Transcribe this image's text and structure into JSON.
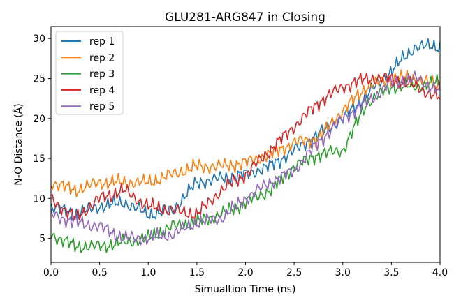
{
  "chart_data": {
    "type": "line",
    "title": "GLU281-ARG847 in Closing",
    "xlabel": "Simualtion Time (ns)",
    "ylabel": "N-O Distance (Å)",
    "xlim": [
      0.0,
      4.0
    ],
    "ylim": [
      2.0,
      31.5
    ],
    "xticks": [
      "0.0",
      "0.5",
      "1.0",
      "1.5",
      "2.0",
      "2.5",
      "3.0",
      "3.5",
      "4.0"
    ],
    "yticks": [
      "5",
      "10",
      "15",
      "20",
      "25",
      "30"
    ],
    "grid": false,
    "legend_position": "top-left",
    "x": [
      0.0,
      0.25,
      0.5,
      0.75,
      1.0,
      1.25,
      1.5,
      1.75,
      2.0,
      2.25,
      2.5,
      2.75,
      3.0,
      3.25,
      3.5,
      3.75,
      4.0
    ],
    "series": [
      {
        "name": "rep 1",
        "color": "#1f77b4",
        "values": [
          9.0,
          8.0,
          9.0,
          9.5,
          8.0,
          8.5,
          12.0,
          12.5,
          13.0,
          14.0,
          16.0,
          18.0,
          20.0,
          23.0,
          26.0,
          29.0,
          29.0
        ]
      },
      {
        "name": "rep 2",
        "color": "#ff7f0e",
        "values": [
          12.0,
          11.0,
          12.0,
          12.0,
          12.0,
          13.0,
          14.0,
          14.0,
          14.5,
          15.5,
          17.0,
          17.5,
          21.0,
          24.0,
          25.0,
          25.0,
          24.0
        ]
      },
      {
        "name": "rep 3",
        "color": "#2ca02c",
        "values": [
          5.5,
          4.0,
          4.0,
          4.5,
          5.0,
          6.5,
          7.0,
          8.0,
          9.5,
          11.0,
          14.0,
          15.5,
          16.0,
          22.0,
          24.0,
          24.0,
          24.5
        ]
      },
      {
        "name": "rep 4",
        "color": "#d62728",
        "values": [
          10.0,
          7.5,
          10.0,
          11.0,
          9.0,
          8.5,
          8.0,
          11.0,
          13.0,
          16.0,
          19.0,
          22.0,
          24.0,
          25.0,
          25.0,
          24.0,
          22.5
        ]
      },
      {
        "name": "rep 5",
        "color": "#9467bd",
        "values": [
          8.0,
          7.0,
          6.5,
          5.0,
          5.0,
          5.5,
          7.0,
          7.5,
          10.0,
          12.0,
          13.5,
          17.0,
          20.0,
          22.0,
          24.5,
          25.0,
          23.5
        ]
      }
    ]
  }
}
